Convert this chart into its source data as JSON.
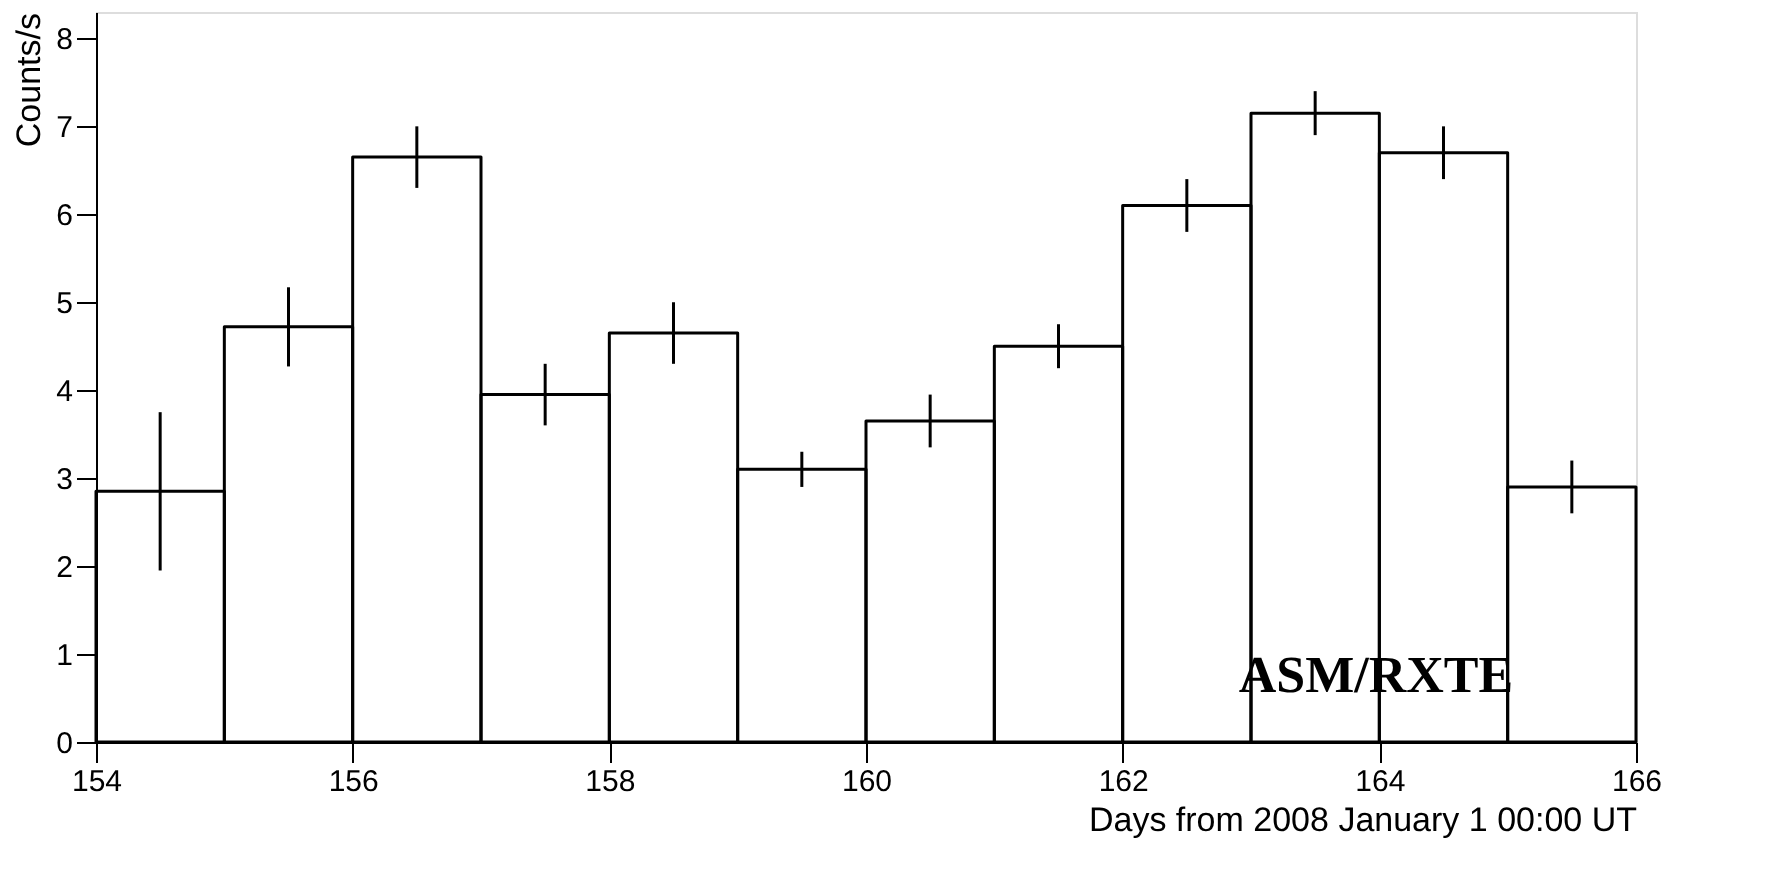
{
  "chart_data": {
    "type": "histogram",
    "xlabel": "Days from 2008 January 1 00:00 UT",
    "ylabel": "Counts/s",
    "bins": [
      154,
      155,
      156,
      157,
      158,
      159,
      160,
      161,
      162,
      163,
      164,
      165,
      166
    ],
    "values": [
      2.85,
      4.72,
      6.65,
      3.95,
      4.65,
      3.1,
      3.65,
      4.5,
      6.1,
      7.15,
      6.7,
      2.9
    ],
    "errors": [
      0.9,
      0.45,
      0.35,
      0.35,
      0.35,
      0.2,
      0.3,
      0.25,
      0.3,
      0.25,
      0.3,
      0.3
    ],
    "color": "#000000",
    "xlim": [
      154,
      166
    ],
    "xticks": [
      154,
      156,
      158,
      160,
      162,
      164,
      166
    ],
    "ylim": [
      0,
      8.3
    ],
    "yticks": [
      0,
      1,
      2,
      3,
      4,
      5,
      6,
      7,
      8
    ],
    "grid": false,
    "annotations": [
      "ASM/RXTE"
    ]
  }
}
